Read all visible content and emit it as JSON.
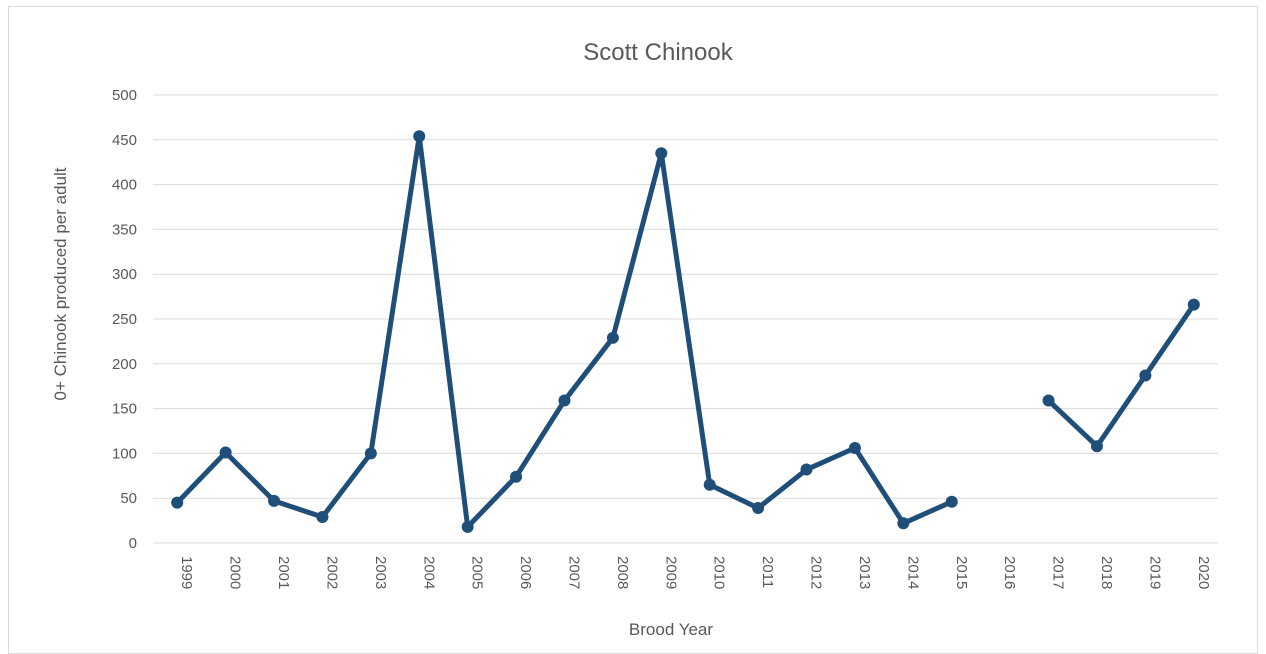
{
  "chart_data": {
    "type": "line",
    "title": "Scott Chinook",
    "xlabel": "Brood Year",
    "ylabel": "0+ Chinook produced per adult",
    "ylim": [
      0,
      500
    ],
    "yticks": [
      "0",
      "50",
      "100",
      "150",
      "200",
      "250",
      "300",
      "350",
      "400",
      "450",
      "500"
    ],
    "categories": [
      "1999",
      "2000",
      "2001",
      "2002",
      "2003",
      "2004",
      "2005",
      "2006",
      "2007",
      "2008",
      "2009",
      "2010",
      "2011",
      "2012",
      "2013",
      "2014",
      "2015",
      "2016",
      "2017",
      "2018",
      "2019",
      "2020"
    ],
    "series": [
      {
        "values": [
          45,
          101,
          47,
          29,
          100,
          454,
          18,
          74,
          159,
          229,
          435,
          65,
          39,
          82,
          106,
          22,
          46,
          null,
          159,
          108,
          187,
          266
        ],
        "color": "#1f4e79"
      }
    ],
    "grid": true,
    "legend": "none"
  }
}
